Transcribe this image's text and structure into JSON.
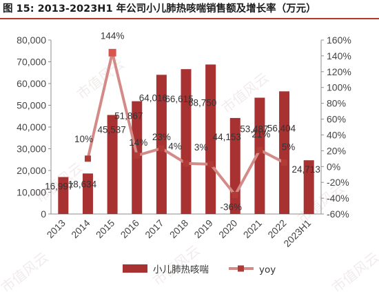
{
  "title": "图 15: 2013-2023H1 年公司小儿肺热咳喘销售额及增长率（万元）",
  "watermark": "市值风云",
  "chart_data": {
    "type": "bar",
    "categories": [
      "2013",
      "2014",
      "2015",
      "2016",
      "2017",
      "2018",
      "2019",
      "2020",
      "2021",
      "2022",
      "2023H1"
    ],
    "series": [
      {
        "name": "小儿肺热咳喘",
        "type": "bar",
        "axis": "left",
        "color": "#a83232",
        "values": [
          16997,
          18634,
          45537,
          51867,
          64016,
          66615,
          68750,
          44153,
          53487,
          56404,
          24713
        ],
        "value_labels": [
          "16,997",
          "18,634",
          "45,537",
          "51,867",
          "64,016",
          "66,615",
          "68,750",
          "44,153",
          "53,487",
          "56,404",
          "24,713"
        ]
      },
      {
        "name": "yoy",
        "type": "line",
        "axis": "right",
        "color": "#d48a86",
        "values": [
          null,
          10,
          144,
          14,
          23,
          4,
          3,
          -36,
          21,
          5,
          null
        ],
        "value_labels": [
          "",
          "10%",
          "144%",
          "14%",
          "23%",
          "4%",
          "3%",
          "-36%",
          "21%",
          "5%",
          ""
        ]
      }
    ],
    "y_left": {
      "range": [
        0,
        80000
      ],
      "ticks": [
        "0",
        "10,000",
        "20,000",
        "30,000",
        "40,000",
        "50,000",
        "60,000",
        "70,000",
        "80,000"
      ]
    },
    "y_right": {
      "range": [
        -60,
        160
      ],
      "ticks": [
        "-60%",
        "-40%",
        "-20%",
        "0%",
        "20%",
        "40%",
        "60%",
        "80%",
        "100%",
        "120%",
        "140%",
        "160%"
      ]
    },
    "grid": false,
    "legend_position": "bottom"
  }
}
